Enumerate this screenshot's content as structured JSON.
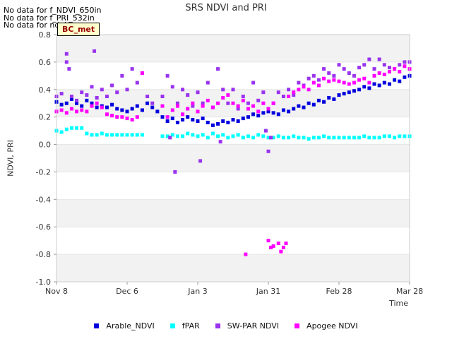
{
  "nodata": [
    "No data for f_NDVI_650in",
    "No data for f_PRI_532in",
    "No data for ndvi"
  ],
  "badge": "BC_met",
  "chart_data": {
    "type": "scatter",
    "title": "SRS NDVI and PRI",
    "xlabel": "Time",
    "ylabel": "NDVI, PRI",
    "ylim": [
      -1.0,
      0.8
    ],
    "xlim": [
      0,
      140
    ],
    "yticks": [
      -1.0,
      -0.8,
      -0.6,
      -0.4,
      -0.2,
      0.0,
      0.2,
      0.4,
      0.6,
      0.8
    ],
    "ytick_labels": [
      "-1.0",
      "-0.8",
      "-0.6",
      "-0.4",
      "-0.2",
      "0.0",
      "0.2",
      "0.4",
      "0.6",
      "0.8"
    ],
    "xticks": [
      0,
      28,
      56,
      84,
      112,
      140
    ],
    "xtick_labels": [
      "Nov 8",
      "Dec 6",
      "Jan 3",
      "Jan 31",
      "Feb 28",
      "Mar 28"
    ],
    "grid": "horizontal bands",
    "legend": "bottom",
    "series": [
      {
        "name": "Arable_NDVI",
        "color": "#0000dd",
        "points": [
          [
            0,
            0.31
          ],
          [
            2,
            0.29
          ],
          [
            4,
            0.3
          ],
          [
            6,
            0.33
          ],
          [
            8,
            0.3
          ],
          [
            10,
            0.28
          ],
          [
            12,
            0.32
          ],
          [
            14,
            0.3
          ],
          [
            16,
            0.27
          ],
          [
            18,
            0.28
          ],
          [
            20,
            0.27
          ],
          [
            22,
            0.29
          ],
          [
            24,
            0.26
          ],
          [
            26,
            0.25
          ],
          [
            28,
            0.24
          ],
          [
            30,
            0.26
          ],
          [
            32,
            0.28
          ],
          [
            34,
            0.25
          ],
          [
            36,
            0.3
          ],
          [
            38,
            0.27
          ],
          [
            40,
            0.24
          ],
          [
            42,
            0.2
          ],
          [
            44,
            0.17
          ],
          [
            46,
            0.19
          ],
          [
            48,
            0.16
          ],
          [
            50,
            0.18
          ],
          [
            52,
            0.2
          ],
          [
            54,
            0.18
          ],
          [
            56,
            0.17
          ],
          [
            58,
            0.19
          ],
          [
            60,
            0.16
          ],
          [
            62,
            0.14
          ],
          [
            64,
            0.15
          ],
          [
            66,
            0.17
          ],
          [
            68,
            0.16
          ],
          [
            70,
            0.18
          ],
          [
            72,
            0.17
          ],
          [
            74,
            0.19
          ],
          [
            76,
            0.2
          ],
          [
            78,
            0.22
          ],
          [
            80,
            0.21
          ],
          [
            82,
            0.23
          ],
          [
            84,
            0.24
          ],
          [
            86,
            0.23
          ],
          [
            88,
            0.22
          ],
          [
            90,
            0.25
          ],
          [
            92,
            0.24
          ],
          [
            94,
            0.26
          ],
          [
            96,
            0.28
          ],
          [
            98,
            0.27
          ],
          [
            100,
            0.3
          ],
          [
            102,
            0.29
          ],
          [
            104,
            0.32
          ],
          [
            106,
            0.31
          ],
          [
            108,
            0.34
          ],
          [
            110,
            0.33
          ],
          [
            112,
            0.36
          ],
          [
            114,
            0.37
          ],
          [
            116,
            0.38
          ],
          [
            118,
            0.39
          ],
          [
            120,
            0.4
          ],
          [
            122,
            0.42
          ],
          [
            124,
            0.41
          ],
          [
            126,
            0.44
          ],
          [
            128,
            0.43
          ],
          [
            130,
            0.45
          ],
          [
            132,
            0.44
          ],
          [
            134,
            0.47
          ],
          [
            136,
            0.46
          ],
          [
            138,
            0.49
          ],
          [
            140,
            0.5
          ]
        ]
      },
      {
        "name": "fPAR",
        "color": "#00ffff",
        "points": [
          [
            0,
            0.1
          ],
          [
            2,
            0.09
          ],
          [
            4,
            0.11
          ],
          [
            6,
            0.12
          ],
          [
            8,
            0.12
          ],
          [
            10,
            0.12
          ],
          [
            12,
            0.08
          ],
          [
            14,
            0.07
          ],
          [
            16,
            0.07
          ],
          [
            18,
            0.08
          ],
          [
            20,
            0.07
          ],
          [
            22,
            0.07
          ],
          [
            24,
            0.07
          ],
          [
            26,
            0.07
          ],
          [
            28,
            0.07
          ],
          [
            30,
            0.07
          ],
          [
            32,
            0.07
          ],
          [
            34,
            0.07
          ],
          [
            42,
            0.06
          ],
          [
            44,
            0.06
          ],
          [
            46,
            0.07
          ],
          [
            48,
            0.06
          ],
          [
            50,
            0.06
          ],
          [
            52,
            0.08
          ],
          [
            54,
            0.07
          ],
          [
            56,
            0.06
          ],
          [
            58,
            0.07
          ],
          [
            60,
            0.05
          ],
          [
            62,
            0.08
          ],
          [
            64,
            0.06
          ],
          [
            66,
            0.07
          ],
          [
            68,
            0.05
          ],
          [
            70,
            0.06
          ],
          [
            72,
            0.07
          ],
          [
            74,
            0.05
          ],
          [
            76,
            0.06
          ],
          [
            78,
            0.05
          ],
          [
            80,
            0.07
          ],
          [
            82,
            0.06
          ],
          [
            84,
            0.05
          ],
          [
            86,
            0.05
          ],
          [
            88,
            0.06
          ],
          [
            90,
            0.05
          ],
          [
            92,
            0.05
          ],
          [
            94,
            0.06
          ],
          [
            96,
            0.05
          ],
          [
            98,
            0.05
          ],
          [
            100,
            0.04
          ],
          [
            102,
            0.05
          ],
          [
            104,
            0.05
          ],
          [
            106,
            0.06
          ],
          [
            108,
            0.05
          ],
          [
            110,
            0.05
          ],
          [
            112,
            0.05
          ],
          [
            114,
            0.05
          ],
          [
            116,
            0.05
          ],
          [
            118,
            0.05
          ],
          [
            120,
            0.05
          ],
          [
            122,
            0.06
          ],
          [
            124,
            0.05
          ],
          [
            126,
            0.05
          ],
          [
            128,
            0.05
          ],
          [
            130,
            0.06
          ],
          [
            132,
            0.06
          ],
          [
            134,
            0.05
          ],
          [
            136,
            0.06
          ],
          [
            138,
            0.06
          ],
          [
            140,
            0.06
          ]
        ]
      },
      {
        "name": "SW-PAR NDVI",
        "color": "#9933ee",
        "points": [
          [
            0,
            0.35
          ],
          [
            2,
            0.37
          ],
          [
            4,
            0.66
          ],
          [
            4,
            0.6
          ],
          [
            5,
            0.55
          ],
          [
            6,
            0.35
          ],
          [
            8,
            0.32
          ],
          [
            10,
            0.38
          ],
          [
            12,
            0.36
          ],
          [
            14,
            0.42
          ],
          [
            15,
            0.68
          ],
          [
            16,
            0.34
          ],
          [
            18,
            0.4
          ],
          [
            20,
            0.35
          ],
          [
            22,
            0.43
          ],
          [
            24,
            0.38
          ],
          [
            26,
            0.5
          ],
          [
            28,
            0.4
          ],
          [
            30,
            0.55
          ],
          [
            32,
            0.45
          ],
          [
            34,
            0.52
          ],
          [
            36,
            0.35
          ],
          [
            38,
            0.3
          ],
          [
            42,
            0.35
          ],
          [
            44,
            0.5
          ],
          [
            45,
            0.05
          ],
          [
            46,
            0.42
          ],
          [
            47,
            -0.2
          ],
          [
            48,
            0.3
          ],
          [
            50,
            0.4
          ],
          [
            52,
            0.36
          ],
          [
            54,
            0.28
          ],
          [
            56,
            0.38
          ],
          [
            57,
            -0.12
          ],
          [
            58,
            0.3
          ],
          [
            60,
            0.45
          ],
          [
            62,
            0.27
          ],
          [
            64,
            0.55
          ],
          [
            65,
            0.02
          ],
          [
            66,
            0.4
          ],
          [
            68,
            0.3
          ],
          [
            70,
            0.4
          ],
          [
            72,
            0.26
          ],
          [
            74,
            0.35
          ],
          [
            76,
            0.3
          ],
          [
            78,
            0.45
          ],
          [
            80,
            0.32
          ],
          [
            82,
            0.38
          ],
          [
            83,
            0.1
          ],
          [
            84,
            -0.05
          ],
          [
            85,
            0.05
          ],
          [
            86,
            0.3
          ],
          [
            88,
            0.38
          ],
          [
            90,
            0.35
          ],
          [
            92,
            0.4
          ],
          [
            94,
            0.36
          ],
          [
            96,
            0.45
          ],
          [
            98,
            0.43
          ],
          [
            100,
            0.48
          ],
          [
            102,
            0.5
          ],
          [
            104,
            0.47
          ],
          [
            106,
            0.55
          ],
          [
            108,
            0.52
          ],
          [
            110,
            0.5
          ],
          [
            112,
            0.58
          ],
          [
            114,
            0.55
          ],
          [
            116,
            0.52
          ],
          [
            118,
            0.5
          ],
          [
            120,
            0.56
          ],
          [
            122,
            0.58
          ],
          [
            124,
            0.62
          ],
          [
            126,
            0.55
          ],
          [
            128,
            0.62
          ],
          [
            130,
            0.58
          ],
          [
            132,
            0.56
          ],
          [
            134,
            0.55
          ],
          [
            136,
            0.58
          ],
          [
            138,
            0.6
          ],
          [
            140,
            0.6
          ]
        ]
      },
      {
        "name": "Apogee NDVI",
        "color": "#ff00ff",
        "points": [
          [
            0,
            0.24
          ],
          [
            2,
            0.25
          ],
          [
            4,
            0.23
          ],
          [
            6,
            0.26
          ],
          [
            8,
            0.24
          ],
          [
            10,
            0.25
          ],
          [
            12,
            0.24
          ],
          [
            14,
            0.28
          ],
          [
            16,
            0.3
          ],
          [
            18,
            0.27
          ],
          [
            20,
            0.22
          ],
          [
            22,
            0.21
          ],
          [
            24,
            0.2
          ],
          [
            26,
            0.2
          ],
          [
            28,
            0.19
          ],
          [
            30,
            0.18
          ],
          [
            32,
            0.2
          ],
          [
            34,
            0.52
          ],
          [
            42,
            0.28
          ],
          [
            44,
            0.2
          ],
          [
            46,
            0.25
          ],
          [
            48,
            0.28
          ],
          [
            50,
            0.22
          ],
          [
            52,
            0.26
          ],
          [
            54,
            0.3
          ],
          [
            56,
            0.24
          ],
          [
            58,
            0.28
          ],
          [
            60,
            0.32
          ],
          [
            62,
            0.27
          ],
          [
            64,
            0.3
          ],
          [
            66,
            0.34
          ],
          [
            68,
            0.36
          ],
          [
            70,
            0.3
          ],
          [
            72,
            0.28
          ],
          [
            74,
            0.32
          ],
          [
            75,
            -0.8
          ],
          [
            76,
            0.26
          ],
          [
            78,
            0.28
          ],
          [
            80,
            0.24
          ],
          [
            82,
            0.3
          ],
          [
            84,
            0.26
          ],
          [
            86,
            0.3
          ],
          [
            84,
            -0.7
          ],
          [
            85,
            -0.75
          ],
          [
            86,
            -0.74
          ],
          [
            88,
            -0.72
          ],
          [
            89,
            -0.78
          ],
          [
            90,
            -0.75
          ],
          [
            91,
            -0.72
          ],
          [
            92,
            0.35
          ],
          [
            94,
            0.38
          ],
          [
            96,
            0.4
          ],
          [
            98,
            0.42
          ],
          [
            100,
            0.4
          ],
          [
            102,
            0.45
          ],
          [
            104,
            0.43
          ],
          [
            106,
            0.48
          ],
          [
            108,
            0.46
          ],
          [
            110,
            0.47
          ],
          [
            112,
            0.46
          ],
          [
            114,
            0.45
          ],
          [
            116,
            0.44
          ],
          [
            118,
            0.45
          ],
          [
            120,
            0.47
          ],
          [
            122,
            0.48
          ],
          [
            124,
            0.45
          ],
          [
            126,
            0.5
          ],
          [
            128,
            0.52
          ],
          [
            130,
            0.51
          ],
          [
            132,
            0.53
          ],
          [
            134,
            0.55
          ],
          [
            136,
            0.53
          ],
          [
            138,
            0.57
          ],
          [
            140,
            0.55
          ]
        ]
      }
    ]
  }
}
